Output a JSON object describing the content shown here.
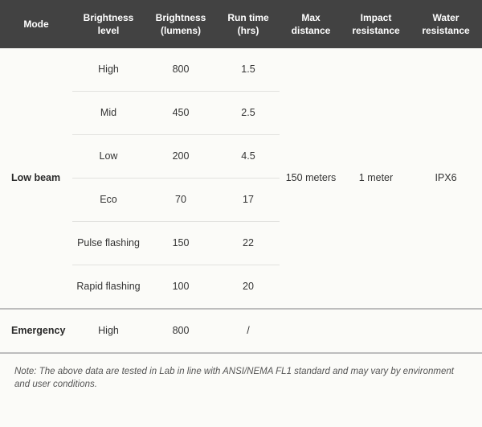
{
  "colors": {
    "header_bg": "#424242",
    "header_text": "#ffffff",
    "body_bg": "#fbfbf8",
    "row_border": "#e2e2df",
    "section_border": "#bdbdbd",
    "text": "#333333",
    "mode_text": "#2a2a2a",
    "note_text": "#555555"
  },
  "typography": {
    "header_fontsize": 12,
    "cell_fontsize": 12.5,
    "note_fontsize": 11.5,
    "font_family": "Arial"
  },
  "columns": [
    {
      "key": "mode",
      "label": "Mode"
    },
    {
      "key": "blevel",
      "label": "Brightness level"
    },
    {
      "key": "lumens",
      "label": "Brightness (lumens)"
    },
    {
      "key": "runtime",
      "label": "Run time (hrs)"
    },
    {
      "key": "dist",
      "label": "Max distance"
    },
    {
      "key": "impact",
      "label": "Impact resistance"
    },
    {
      "key": "water",
      "label": "Water resistance"
    }
  ],
  "modes": [
    {
      "name": "Low beam",
      "max_distance": "150 meters",
      "impact_resistance": "1 meter",
      "water_resistance": "IPX6",
      "rows": [
        {
          "level": "High",
          "lumens": "800",
          "runtime": "1.5"
        },
        {
          "level": "Mid",
          "lumens": "450",
          "runtime": "2.5"
        },
        {
          "level": "Low",
          "lumens": "200",
          "runtime": "4.5"
        },
        {
          "level": "Eco",
          "lumens": "70",
          "runtime": "17"
        },
        {
          "level": "Pulse flashing",
          "lumens": "150",
          "runtime": "22"
        },
        {
          "level": "Rapid flashing",
          "lumens": "100",
          "runtime": "20"
        }
      ]
    },
    {
      "name": "Emergency",
      "max_distance": "",
      "impact_resistance": "",
      "water_resistance": "",
      "rows": [
        {
          "level": "High",
          "lumens": "800",
          "runtime": "/"
        }
      ]
    }
  ],
  "note": "Note: The above data are tested in Lab in line with ANSI/NEMA FL1 standard and may vary by environment and user conditions."
}
